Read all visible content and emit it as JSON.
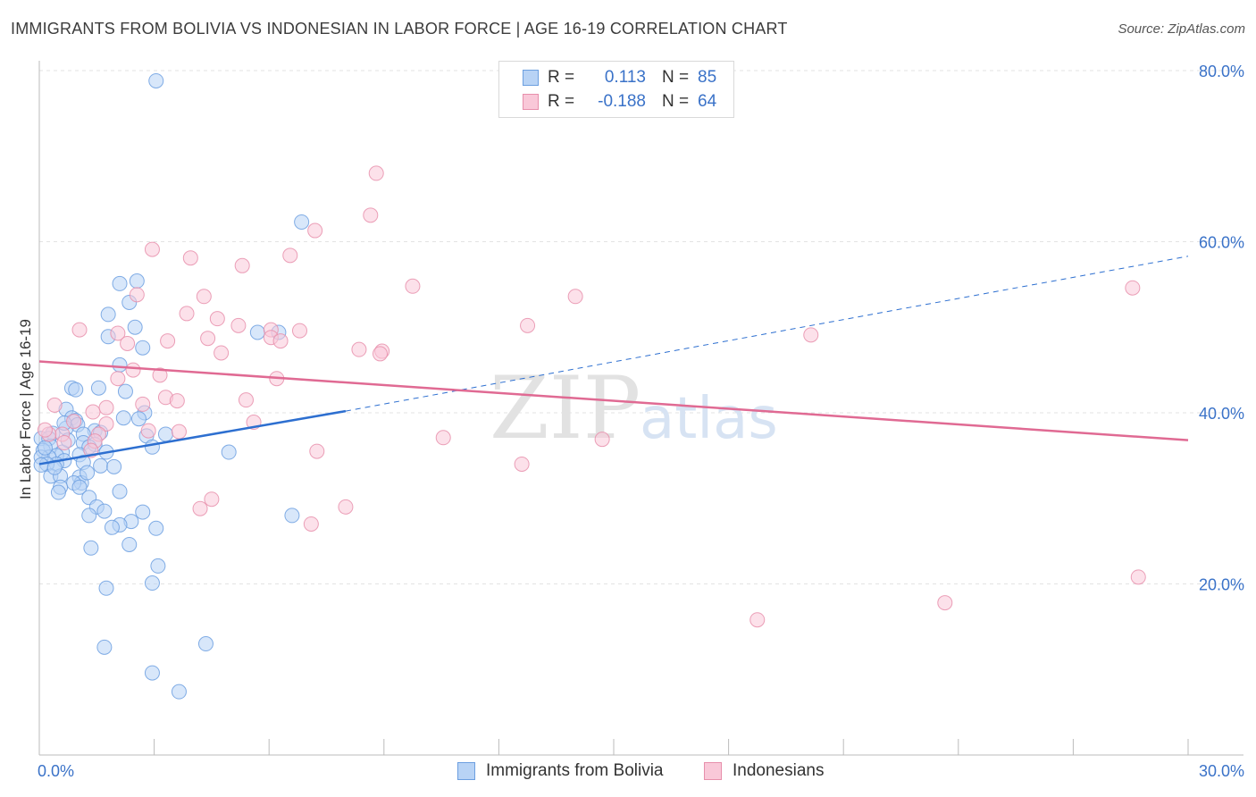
{
  "title": "IMMIGRANTS FROM BOLIVIA VS INDONESIAN IN LABOR FORCE | AGE 16-19 CORRELATION CHART",
  "source": "Source: ZipAtlas.com",
  "watermark": {
    "zip": "ZIP",
    "atlas": "atlas"
  },
  "legend": {
    "rows": [
      {
        "r_label": "R =",
        "r_value": "0.113",
        "n_label": "N =",
        "n_value": "85",
        "fill": "#b8d3f5",
        "stroke": "#6c9fe0"
      },
      {
        "r_label": "R =",
        "r_value": "-0.188",
        "n_label": "N =",
        "n_value": "64",
        "fill": "#f9c8d8",
        "stroke": "#e78fab"
      }
    ]
  },
  "bottom_legend": [
    {
      "label": "Immigrants from Bolivia",
      "fill": "#b8d3f5",
      "stroke": "#6c9fe0"
    },
    {
      "label": "Indonesians",
      "fill": "#f9c8d8",
      "stroke": "#e78fab"
    }
  ],
  "chart_data": {
    "type": "scatter",
    "title": "IMMIGRANTS FROM BOLIVIA VS INDONESIAN IN LABOR FORCE | AGE 16-19 CORRELATION CHART",
    "xlabel": "",
    "ylabel": "In Labor Force | Age 16-19",
    "xlim": [
      0,
      30
    ],
    "ylim": [
      0,
      80
    ],
    "x_tick_labels": [
      "0.0%",
      "30.0%"
    ],
    "y_ticks": [
      20,
      40,
      60,
      80
    ],
    "y_tick_labels": [
      "20.0%",
      "40.0%",
      "60.0%",
      "80.0%"
    ],
    "grid": true,
    "colors": {
      "blue": "#3a72c8",
      "blue_line": "#2d6fd0",
      "pink_line": "#e06a93",
      "grid": "#e3e3e3",
      "axis": "#bbbbbb"
    },
    "series": [
      {
        "name": "Immigrants from Bolivia",
        "color": "#6c9fe0",
        "fill": "#b8d3f5",
        "points": [
          [
            3.05,
            78.8
          ],
          [
            6.85,
            62.3
          ],
          [
            2.1,
            55.1
          ],
          [
            2.55,
            55.4
          ],
          [
            2.35,
            52.9
          ],
          [
            1.8,
            51.5
          ],
          [
            2.5,
            50.0
          ],
          [
            1.8,
            48.9
          ],
          [
            5.7,
            49.4
          ],
          [
            6.25,
            49.4
          ],
          [
            2.7,
            47.6
          ],
          [
            2.1,
            45.6
          ],
          [
            1.55,
            42.9
          ],
          [
            0.85,
            42.9
          ],
          [
            0.95,
            42.7
          ],
          [
            2.25,
            42.5
          ],
          [
            0.7,
            40.4
          ],
          [
            2.75,
            40.0
          ],
          [
            0.85,
            39.4
          ],
          [
            2.6,
            39.3
          ],
          [
            0.95,
            39.1
          ],
          [
            2.2,
            39.4
          ],
          [
            1.0,
            38.6
          ],
          [
            0.7,
            38.2
          ],
          [
            0.65,
            38.8
          ],
          [
            1.45,
            37.9
          ],
          [
            1.6,
            37.7
          ],
          [
            0.35,
            37.6
          ],
          [
            1.15,
            37.5
          ],
          [
            0.05,
            37.0
          ],
          [
            0.25,
            37.0
          ],
          [
            2.8,
            37.3
          ],
          [
            3.3,
            37.5
          ],
          [
            1.15,
            36.5
          ],
          [
            1.45,
            36.3
          ],
          [
            1.3,
            36.0
          ],
          [
            0.3,
            36.1
          ],
          [
            0.1,
            35.6
          ],
          [
            2.95,
            36.0
          ],
          [
            1.75,
            35.4
          ],
          [
            0.6,
            35.4
          ],
          [
            1.05,
            35.1
          ],
          [
            0.45,
            35.0
          ],
          [
            0.25,
            34.8
          ],
          [
            0.05,
            34.8
          ],
          [
            0.65,
            34.4
          ],
          [
            1.15,
            34.2
          ],
          [
            0.45,
            34.0
          ],
          [
            0.2,
            34.0
          ],
          [
            0.05,
            33.9
          ],
          [
            1.6,
            33.8
          ],
          [
            1.95,
            33.7
          ],
          [
            4.95,
            35.4
          ],
          [
            0.3,
            32.6
          ],
          [
            0.55,
            32.6
          ],
          [
            1.05,
            32.5
          ],
          [
            1.1,
            31.8
          ],
          [
            0.9,
            31.8
          ],
          [
            0.55,
            31.3
          ],
          [
            1.05,
            31.3
          ],
          [
            0.5,
            30.7
          ],
          [
            2.1,
            30.8
          ],
          [
            1.3,
            30.1
          ],
          [
            1.5,
            29.0
          ],
          [
            1.7,
            28.5
          ],
          [
            2.7,
            28.4
          ],
          [
            1.3,
            28.0
          ],
          [
            6.6,
            28.0
          ],
          [
            2.4,
            27.3
          ],
          [
            2.1,
            26.9
          ],
          [
            1.9,
            26.6
          ],
          [
            3.05,
            26.5
          ],
          [
            2.35,
            24.6
          ],
          [
            1.35,
            24.2
          ],
          [
            3.1,
            22.1
          ],
          [
            2.95,
            20.1
          ],
          [
            1.75,
            19.5
          ],
          [
            1.7,
            12.6
          ],
          [
            4.35,
            13.0
          ],
          [
            2.95,
            9.6
          ],
          [
            3.65,
            7.4
          ],
          [
            0.15,
            35.9
          ],
          [
            0.4,
            33.6
          ],
          [
            1.25,
            33.0
          ],
          [
            0.75,
            36.8
          ]
        ]
      },
      {
        "name": "Indonesians",
        "color": "#e78fab",
        "fill": "#f9c8d8",
        "points": [
          [
            8.8,
            68.0
          ],
          [
            8.65,
            63.1
          ],
          [
            7.2,
            61.3
          ],
          [
            2.95,
            59.1
          ],
          [
            6.55,
            58.4
          ],
          [
            3.95,
            58.1
          ],
          [
            5.3,
            57.2
          ],
          [
            9.75,
            54.8
          ],
          [
            28.55,
            54.6
          ],
          [
            2.55,
            53.8
          ],
          [
            4.3,
            53.6
          ],
          [
            14.0,
            53.6
          ],
          [
            3.85,
            51.6
          ],
          [
            4.65,
            51.0
          ],
          [
            12.75,
            50.2
          ],
          [
            5.2,
            50.2
          ],
          [
            1.05,
            49.7
          ],
          [
            6.05,
            49.7
          ],
          [
            6.8,
            49.6
          ],
          [
            20.15,
            49.1
          ],
          [
            2.05,
            49.3
          ],
          [
            6.05,
            48.8
          ],
          [
            4.4,
            48.7
          ],
          [
            3.35,
            48.4
          ],
          [
            6.3,
            48.4
          ],
          [
            2.3,
            48.1
          ],
          [
            8.35,
            47.4
          ],
          [
            8.95,
            47.2
          ],
          [
            4.75,
            47.0
          ],
          [
            8.9,
            46.9
          ],
          [
            2.45,
            45.0
          ],
          [
            3.15,
            44.4
          ],
          [
            6.2,
            44.0
          ],
          [
            2.05,
            44.0
          ],
          [
            3.3,
            41.8
          ],
          [
            3.6,
            41.4
          ],
          [
            5.4,
            41.5
          ],
          [
            0.4,
            40.9
          ],
          [
            2.7,
            41.0
          ],
          [
            1.75,
            40.6
          ],
          [
            1.4,
            40.1
          ],
          [
            5.6,
            38.9
          ],
          [
            0.9,
            39.0
          ],
          [
            1.75,
            38.7
          ],
          [
            2.85,
            37.9
          ],
          [
            3.65,
            37.8
          ],
          [
            1.55,
            37.5
          ],
          [
            0.6,
            37.5
          ],
          [
            1.45,
            36.7
          ],
          [
            0.65,
            36.5
          ],
          [
            10.55,
            37.1
          ],
          [
            14.7,
            36.9
          ],
          [
            1.35,
            35.6
          ],
          [
            7.25,
            35.5
          ],
          [
            12.6,
            34.0
          ],
          [
            0.25,
            37.5
          ],
          [
            4.5,
            29.9
          ],
          [
            4.2,
            28.8
          ],
          [
            8.0,
            29.0
          ],
          [
            7.1,
            27.0
          ],
          [
            28.7,
            20.8
          ],
          [
            23.65,
            17.8
          ],
          [
            18.75,
            15.8
          ],
          [
            0.15,
            38.0
          ]
        ]
      }
    ],
    "trend_lines": [
      {
        "series": "Immigrants from Bolivia",
        "solid": [
          [
            0,
            34.0
          ],
          [
            8.0,
            40.2
          ]
        ],
        "dashed": [
          [
            8.0,
            40.2
          ],
          [
            30,
            58.3
          ]
        ],
        "color": "#2d6fd0"
      },
      {
        "series": "Indonesians",
        "solid": [
          [
            0,
            46.0
          ],
          [
            30,
            36.8
          ]
        ],
        "color": "#e06a93"
      }
    ]
  }
}
